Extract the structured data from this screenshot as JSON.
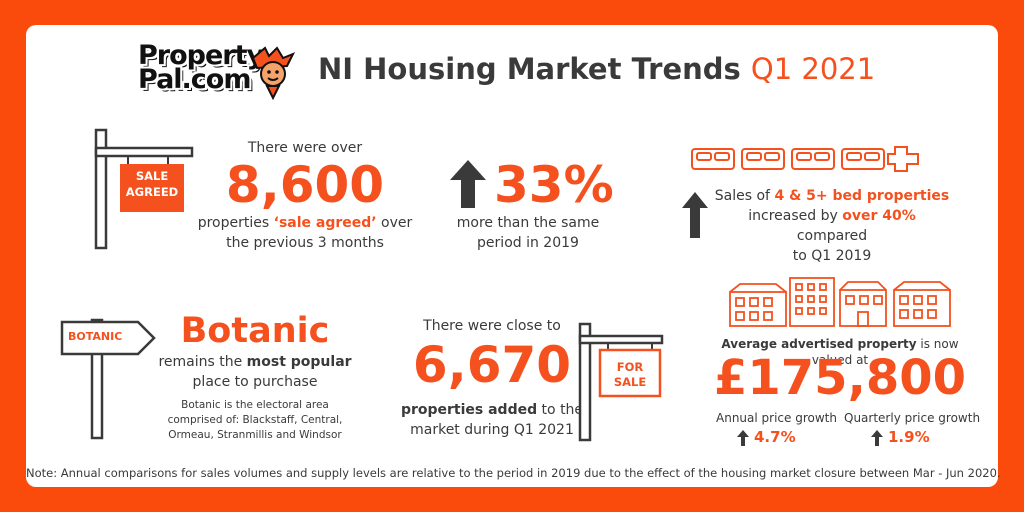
{
  "header": {
    "logo_line1": "Property",
    "logo_line2": "Pal.com",
    "title": "NI Housing Market Trends",
    "period": "Q1 2021"
  },
  "sale_agreed": {
    "sign_text_1": "SALE",
    "sign_text_2": "AGREED",
    "intro": "There were over",
    "figure": "8,600",
    "desc_pre": "properties ",
    "desc_bold": "‘sale agreed’",
    "desc_post": " over",
    "desc_line2": "the previous 3 months"
  },
  "growth": {
    "figure": "33%",
    "desc_line1": "more than the same",
    "desc_line2": "period in 2019"
  },
  "beds": {
    "line1_pre": "Sales of ",
    "line1_bold": "4 & 5+ bed properties",
    "line2_pre": "increased by ",
    "line2_bold": "over 40%",
    "line2_post": " compared",
    "line3": "to Q1 2019"
  },
  "botanic": {
    "sign_text": "BOTANIC",
    "name": "Botanic",
    "line1_pre": "remains the ",
    "line1_bold": "most popular",
    "line2": "place to purchase",
    "note_line1": "Botanic is the electoral area",
    "note_line2": "comprised of: Blackstaff, Central,",
    "note_line3": "Ormeau, Stranmillis and Windsor"
  },
  "added": {
    "intro": "There were close to",
    "figure": "6,670",
    "desc_bold": "properties added",
    "desc_post": " to the",
    "desc_line2": "market during Q1 2021",
    "sign_text_1": "FOR",
    "sign_text_2": "SALE"
  },
  "price": {
    "label_bold": "Average advertised property",
    "label_post": " is now valued at",
    "figure": "£175,800",
    "annual_label": "Annual price growth",
    "annual_value": "4.7%",
    "quarterly_label": "Quarterly price growth",
    "quarterly_value": "1.9%"
  },
  "footnote": "Note: Annual comparisons for sales volumes and supply levels are relative to the period in 2019 due to the effect of the housing market closure between Mar - Jun 2020.",
  "colors": {
    "accent": "#f4511e",
    "background": "#fa4a0c",
    "text": "#3a3a3a"
  }
}
